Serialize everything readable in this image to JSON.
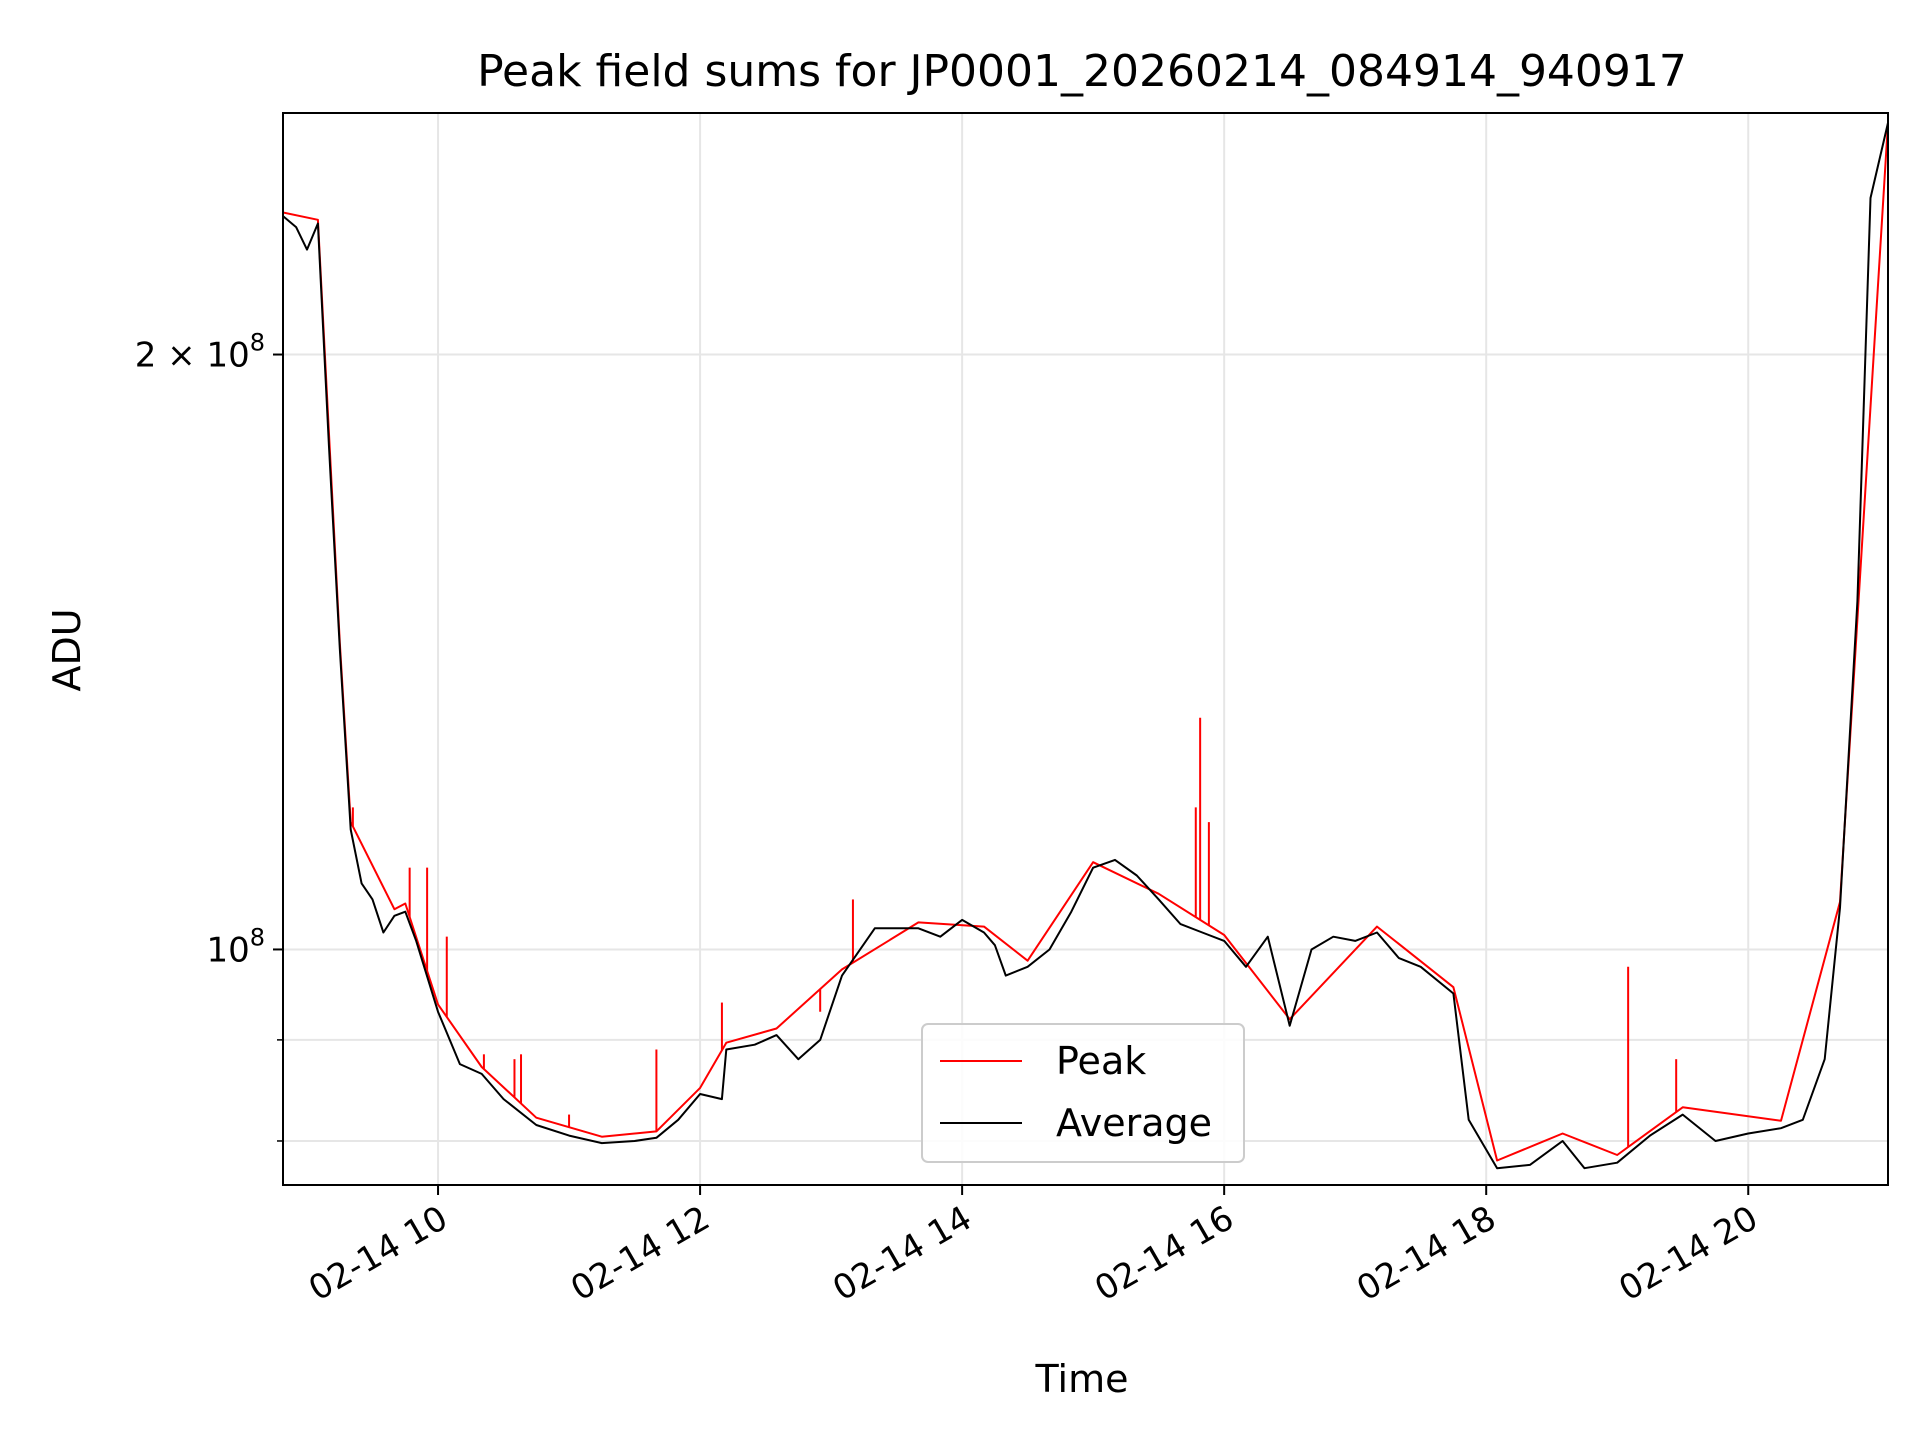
{
  "chart_data": {
    "type": "line",
    "title": "Peak field sums for JP0001_20260214_084914_940917",
    "xlabel": "Time",
    "ylabel": "ADU",
    "x_range": [
      "2026-02-14 08:49",
      "2026-02-14 21:04"
    ],
    "ylim": [
      76000000,
      265000000
    ],
    "y_scale": "log",
    "grid": true,
    "legend_position": "lower-center",
    "x_ticks": [
      {
        "x": "2026-02-14 10:00",
        "label": "02-14 10"
      },
      {
        "x": "2026-02-14 12:00",
        "label": "02-14 12"
      },
      {
        "x": "2026-02-14 14:00",
        "label": "02-14 14"
      },
      {
        "x": "2026-02-14 16:00",
        "label": "02-14 16"
      },
      {
        "x": "2026-02-14 18:00",
        "label": "02-14 18"
      },
      {
        "x": "2026-02-14 20:00",
        "label": "02-14 20"
      }
    ],
    "y_major_ticks": [
      {
        "y": 100000000,
        "label_base": "10",
        "label_exp": "8",
        "label_mult": ""
      },
      {
        "y": 200000000,
        "label_base": "10",
        "label_exp": "8",
        "label_mult": "2 × "
      }
    ],
    "y_minor_ticks": [
      80000000,
      90000000
    ],
    "series": [
      {
        "name": "Average",
        "color": "#000000",
        "points": [
          [
            "2026-02-14 08:49",
            235000000
          ],
          [
            "2026-02-14 08:55",
            232000000
          ],
          [
            "2026-02-14 09:00",
            226000000
          ],
          [
            "2026-02-14 09:05",
            233000000
          ],
          [
            "2026-02-14 09:10",
            180000000
          ],
          [
            "2026-02-14 09:15",
            142000000
          ],
          [
            "2026-02-14 09:20",
            115000000
          ],
          [
            "2026-02-14 09:25",
            108000000
          ],
          [
            "2026-02-14 09:30",
            106000000
          ],
          [
            "2026-02-14 09:35",
            102000000
          ],
          [
            "2026-02-14 09:40",
            104000000
          ],
          [
            "2026-02-14 09:45",
            104500000
          ],
          [
            "2026-02-14 09:50",
            101000000
          ],
          [
            "2026-02-14 10:00",
            93000000
          ],
          [
            "2026-02-14 10:10",
            87500000
          ],
          [
            "2026-02-14 10:20",
            86500000
          ],
          [
            "2026-02-14 10:30",
            84000000
          ],
          [
            "2026-02-14 10:45",
            81500000
          ],
          [
            "2026-02-14 11:00",
            80500000
          ],
          [
            "2026-02-14 11:15",
            79800000
          ],
          [
            "2026-02-14 11:30",
            80000000
          ],
          [
            "2026-02-14 11:40",
            80300000
          ],
          [
            "2026-02-14 11:50",
            82000000
          ],
          [
            "2026-02-14 12:00",
            84500000
          ],
          [
            "2026-02-14 12:10",
            84000000
          ],
          [
            "2026-02-14 12:12",
            89000000
          ],
          [
            "2026-02-14 12:25",
            89500000
          ],
          [
            "2026-02-14 12:35",
            90500000
          ],
          [
            "2026-02-14 12:45",
            88000000
          ],
          [
            "2026-02-14 12:55",
            90000000
          ],
          [
            "2026-02-14 13:05",
            97000000
          ],
          [
            "2026-02-14 13:20",
            102500000
          ],
          [
            "2026-02-14 13:40",
            102500000
          ],
          [
            "2026-02-14 13:50",
            101500000
          ],
          [
            "2026-02-14 14:00",
            103500000
          ],
          [
            "2026-02-14 14:10",
            102000000
          ],
          [
            "2026-02-14 14:15",
            100500000
          ],
          [
            "2026-02-14 14:20",
            97000000
          ],
          [
            "2026-02-14 14:30",
            98000000
          ],
          [
            "2026-02-14 14:40",
            100000000
          ],
          [
            "2026-02-14 14:50",
            104500000
          ],
          [
            "2026-02-14 15:00",
            110000000
          ],
          [
            "2026-02-14 15:10",
            111000000
          ],
          [
            "2026-02-14 15:20",
            109000000
          ],
          [
            "2026-02-14 15:30",
            106000000
          ],
          [
            "2026-02-14 15:40",
            103000000
          ],
          [
            "2026-02-14 15:50",
            102000000
          ],
          [
            "2026-02-14 16:00",
            101000000
          ],
          [
            "2026-02-14 16:10",
            98000000
          ],
          [
            "2026-02-14 16:20",
            101500000
          ],
          [
            "2026-02-14 16:30",
            91500000
          ],
          [
            "2026-02-14 16:40",
            100000000
          ],
          [
            "2026-02-14 16:50",
            101500000
          ],
          [
            "2026-02-14 17:00",
            101000000
          ],
          [
            "2026-02-14 17:10",
            102000000
          ],
          [
            "2026-02-14 17:20",
            99000000
          ],
          [
            "2026-02-14 17:30",
            98000000
          ],
          [
            "2026-02-14 17:45",
            95000000
          ],
          [
            "2026-02-14 17:52",
            82000000
          ],
          [
            "2026-02-14 18:05",
            77500000
          ],
          [
            "2026-02-14 18:20",
            77800000
          ],
          [
            "2026-02-14 18:35",
            80000000
          ],
          [
            "2026-02-14 18:45",
            77500000
          ],
          [
            "2026-02-14 19:00",
            78000000
          ],
          [
            "2026-02-14 19:15",
            80500000
          ],
          [
            "2026-02-14 19:30",
            82500000
          ],
          [
            "2026-02-14 19:45",
            80000000
          ],
          [
            "2026-02-14 20:00",
            80700000
          ],
          [
            "2026-02-14 20:15",
            81200000
          ],
          [
            "2026-02-14 20:25",
            82000000
          ],
          [
            "2026-02-14 20:35",
            88000000
          ],
          [
            "2026-02-14 20:42",
            105000000
          ],
          [
            "2026-02-14 20:50",
            150000000
          ],
          [
            "2026-02-14 20:56",
            240000000
          ],
          [
            "2026-02-14 21:04",
            262000000
          ]
        ]
      },
      {
        "name": "Peak",
        "color": "#ff0000",
        "points": [
          [
            "2026-02-14 08:49",
            236000000
          ],
          [
            "2026-02-14 09:05",
            234000000
          ],
          [
            "2026-02-14 09:15",
            143000000
          ],
          [
            "2026-02-14 09:20",
            116000000
          ],
          [
            "2026-02-14 09:40",
            104800000
          ],
          [
            "2026-02-14 09:45",
            105500000
          ],
          [
            "2026-02-14 10:00",
            93800000
          ],
          [
            "2026-02-14 10:20",
            87200000
          ],
          [
            "2026-02-14 10:45",
            82200000
          ],
          [
            "2026-02-14 11:15",
            80400000
          ],
          [
            "2026-02-14 11:40",
            80900000
          ],
          [
            "2026-02-14 12:00",
            85100000
          ],
          [
            "2026-02-14 12:12",
            89700000
          ],
          [
            "2026-02-14 12:35",
            91200000
          ],
          [
            "2026-02-14 13:05",
            97700000
          ],
          [
            "2026-02-14 13:40",
            103200000
          ],
          [
            "2026-02-14 14:10",
            102700000
          ],
          [
            "2026-02-14 14:30",
            98700000
          ],
          [
            "2026-02-14 15:00",
            110700000
          ],
          [
            "2026-02-14 15:30",
            106700000
          ],
          [
            "2026-02-14 16:00",
            101700000
          ],
          [
            "2026-02-14 16:30",
            92200000
          ],
          [
            "2026-02-14 17:10",
            102700000
          ],
          [
            "2026-02-14 17:45",
            95700000
          ],
          [
            "2026-02-14 18:05",
            78200000
          ],
          [
            "2026-02-14 18:35",
            80700000
          ],
          [
            "2026-02-14 19:00",
            78700000
          ],
          [
            "2026-02-14 19:30",
            83200000
          ],
          [
            "2026-02-14 20:15",
            81900000
          ],
          [
            "2026-02-14 20:42",
            105700000
          ],
          [
            "2026-02-14 21:04",
            262000000
          ]
        ],
        "spikes": [
          [
            "2026-02-14 09:21",
            118000000
          ],
          [
            "2026-02-14 09:47",
            110000000
          ],
          [
            "2026-02-14 09:55",
            110000000
          ],
          [
            "2026-02-14 10:04",
            101500000
          ],
          [
            "2026-02-14 10:21",
            88500000
          ],
          [
            "2026-02-14 10:35",
            88000000
          ],
          [
            "2026-02-14 10:38",
            88500000
          ],
          [
            "2026-02-14 11:00",
            82500000
          ],
          [
            "2026-02-14 11:40",
            89000000
          ],
          [
            "2026-02-14 12:10",
            94000000
          ],
          [
            "2026-02-14 12:55",
            93000000
          ],
          [
            "2026-02-14 13:10",
            106000000
          ],
          [
            "2026-02-14 15:47",
            118000000
          ],
          [
            "2026-02-14 15:49",
            131000000
          ],
          [
            "2026-02-14 15:53",
            116000000
          ],
          [
            "2026-02-14 19:05",
            98000000
          ],
          [
            "2026-02-14 19:27",
            88000000
          ]
        ]
      }
    ]
  }
}
